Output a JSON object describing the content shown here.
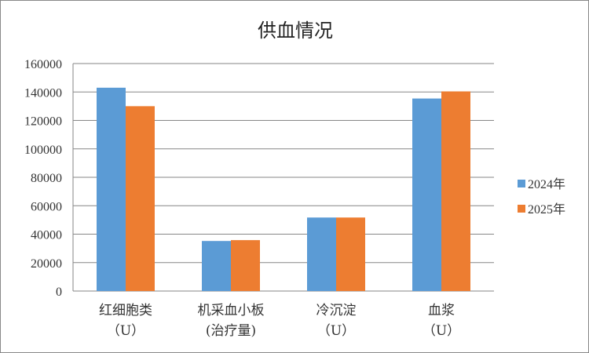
{
  "chart_data": {
    "type": "bar",
    "title": "供血情况",
    "categories": [
      [
        "红细胞类",
        "（U）"
      ],
      [
        "机采血小板",
        "(治疗量)"
      ],
      [
        "冷沉淀",
        "（U）"
      ],
      [
        "血浆",
        "（U）"
      ]
    ],
    "series": [
      {
        "name": "2024年",
        "color": "#5b9bd5",
        "values": [
          143000,
          35200,
          51700,
          135400
        ]
      },
      {
        "name": "2025年",
        "color": "#ed7d31",
        "values": [
          130000,
          35800,
          51700,
          140400
        ]
      }
    ],
    "ylim": [
      0,
      160000
    ],
    "yticks": [
      "0",
      "20000",
      "40000",
      "60000",
      "80000",
      "100000",
      "120000",
      "140000",
      "160000"
    ],
    "grid": true,
    "legend": "right"
  }
}
